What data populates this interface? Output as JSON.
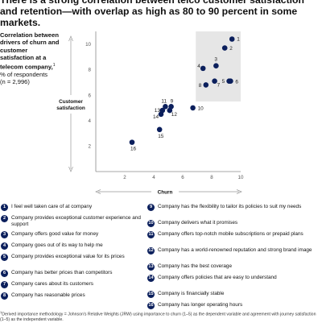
{
  "headline": "There is a strong correlation between telco customer satisfaction and retention—with overlap as high as 80 to 90 percent in some markets.",
  "side_label": {
    "title": "Correlation between drivers of churn and customer satisfaction at a telecom company,",
    "footnote_mark": "1",
    "unit": "% of respondents",
    "n": "(n = 2,996)"
  },
  "chart_data": {
    "type": "scatter",
    "title": "",
    "xlabel": "Churn",
    "ylabel": "Customer satisfaction",
    "xlim": [
      0,
      10
    ],
    "ylim": [
      0,
      11
    ],
    "xticks": [
      2,
      4,
      6,
      8,
      10
    ],
    "yticks": [
      2,
      4,
      6,
      8,
      10
    ],
    "grid": false,
    "highlight_region": {
      "x": [
        6.9,
        10
      ],
      "y": [
        5.5,
        11
      ]
    },
    "points": [
      {
        "label": "1",
        "x": 9.4,
        "y": 10.4
      },
      {
        "label": "2",
        "x": 8.9,
        "y": 9.7
      },
      {
        "label": "3",
        "x": 8.3,
        "y": 8.3
      },
      {
        "label": "4",
        "x": 7.4,
        "y": 8.1
      },
      {
        "label": "5",
        "x": 9.2,
        "y": 7.1
      },
      {
        "label": "6",
        "x": 9.3,
        "y": 7.1
      },
      {
        "label": "7",
        "x": 8.2,
        "y": 7.1
      },
      {
        "label": "8",
        "x": 7.6,
        "y": 6.8
      },
      {
        "label": "9",
        "x": 5.2,
        "y": 5.1
      },
      {
        "label": "10",
        "x": 6.7,
        "y": 5.0
      },
      {
        "label": "11",
        "x": 4.8,
        "y": 5.1
      },
      {
        "label": "12",
        "x": 5.1,
        "y": 4.8
      },
      {
        "label": "13",
        "x": 4.6,
        "y": 4.8
      },
      {
        "label": "14",
        "x": 4.5,
        "y": 4.5
      },
      {
        "label": "15",
        "x": 4.4,
        "y": 3.3
      },
      {
        "label": "16",
        "x": 2.5,
        "y": 2.3
      }
    ],
    "colors": {
      "point": "#0b1f5c",
      "region": "#e6e6e6",
      "axis": "#8a8a8a"
    }
  },
  "legend": {
    "left": [
      {
        "num": "1",
        "text": "I feel well taken care of at company"
      },
      {
        "num": "2",
        "text": "Company provides exceptional customer experience and support"
      },
      {
        "num": "3",
        "text": "Company offers good value for money"
      },
      {
        "num": "4",
        "text": "Company goes out of its way to help me"
      },
      {
        "num": "5",
        "text": "Company provides exceptional value for its prices"
      },
      {
        "num": "6",
        "text": "Company has better prices than competitors"
      },
      {
        "num": "7",
        "text": "Company cares about its customers"
      },
      {
        "num": "8",
        "text": "Company has reasonable prices"
      }
    ],
    "right": [
      {
        "num": "9",
        "text": "Company has the flexibility to tailor its policies to suit my needs"
      },
      {
        "num": "10",
        "text": "Company delivers what it promises"
      },
      {
        "num": "11",
        "text": "Company offers top-notch mobile subscriptions or prepaid plans"
      },
      {
        "num": "12",
        "text": "Company has a world-renowned reputation and strong brand image"
      },
      {
        "num": "13",
        "text": "Company has the best coverage"
      },
      {
        "num": "14",
        "text": "Company offers policies that are easy to understand"
      },
      {
        "num": "15",
        "text": "Company is financially stable"
      },
      {
        "num": "16",
        "text": "Company has longer operating hours"
      }
    ]
  },
  "footnote": {
    "mark": "1",
    "text": "Derived importance methodology = Johnson's Relative Weights (JRW) using importance to churn (1–5) as the dependent variable and agreement with journey satisfaction (1–5) as the independent variable."
  }
}
